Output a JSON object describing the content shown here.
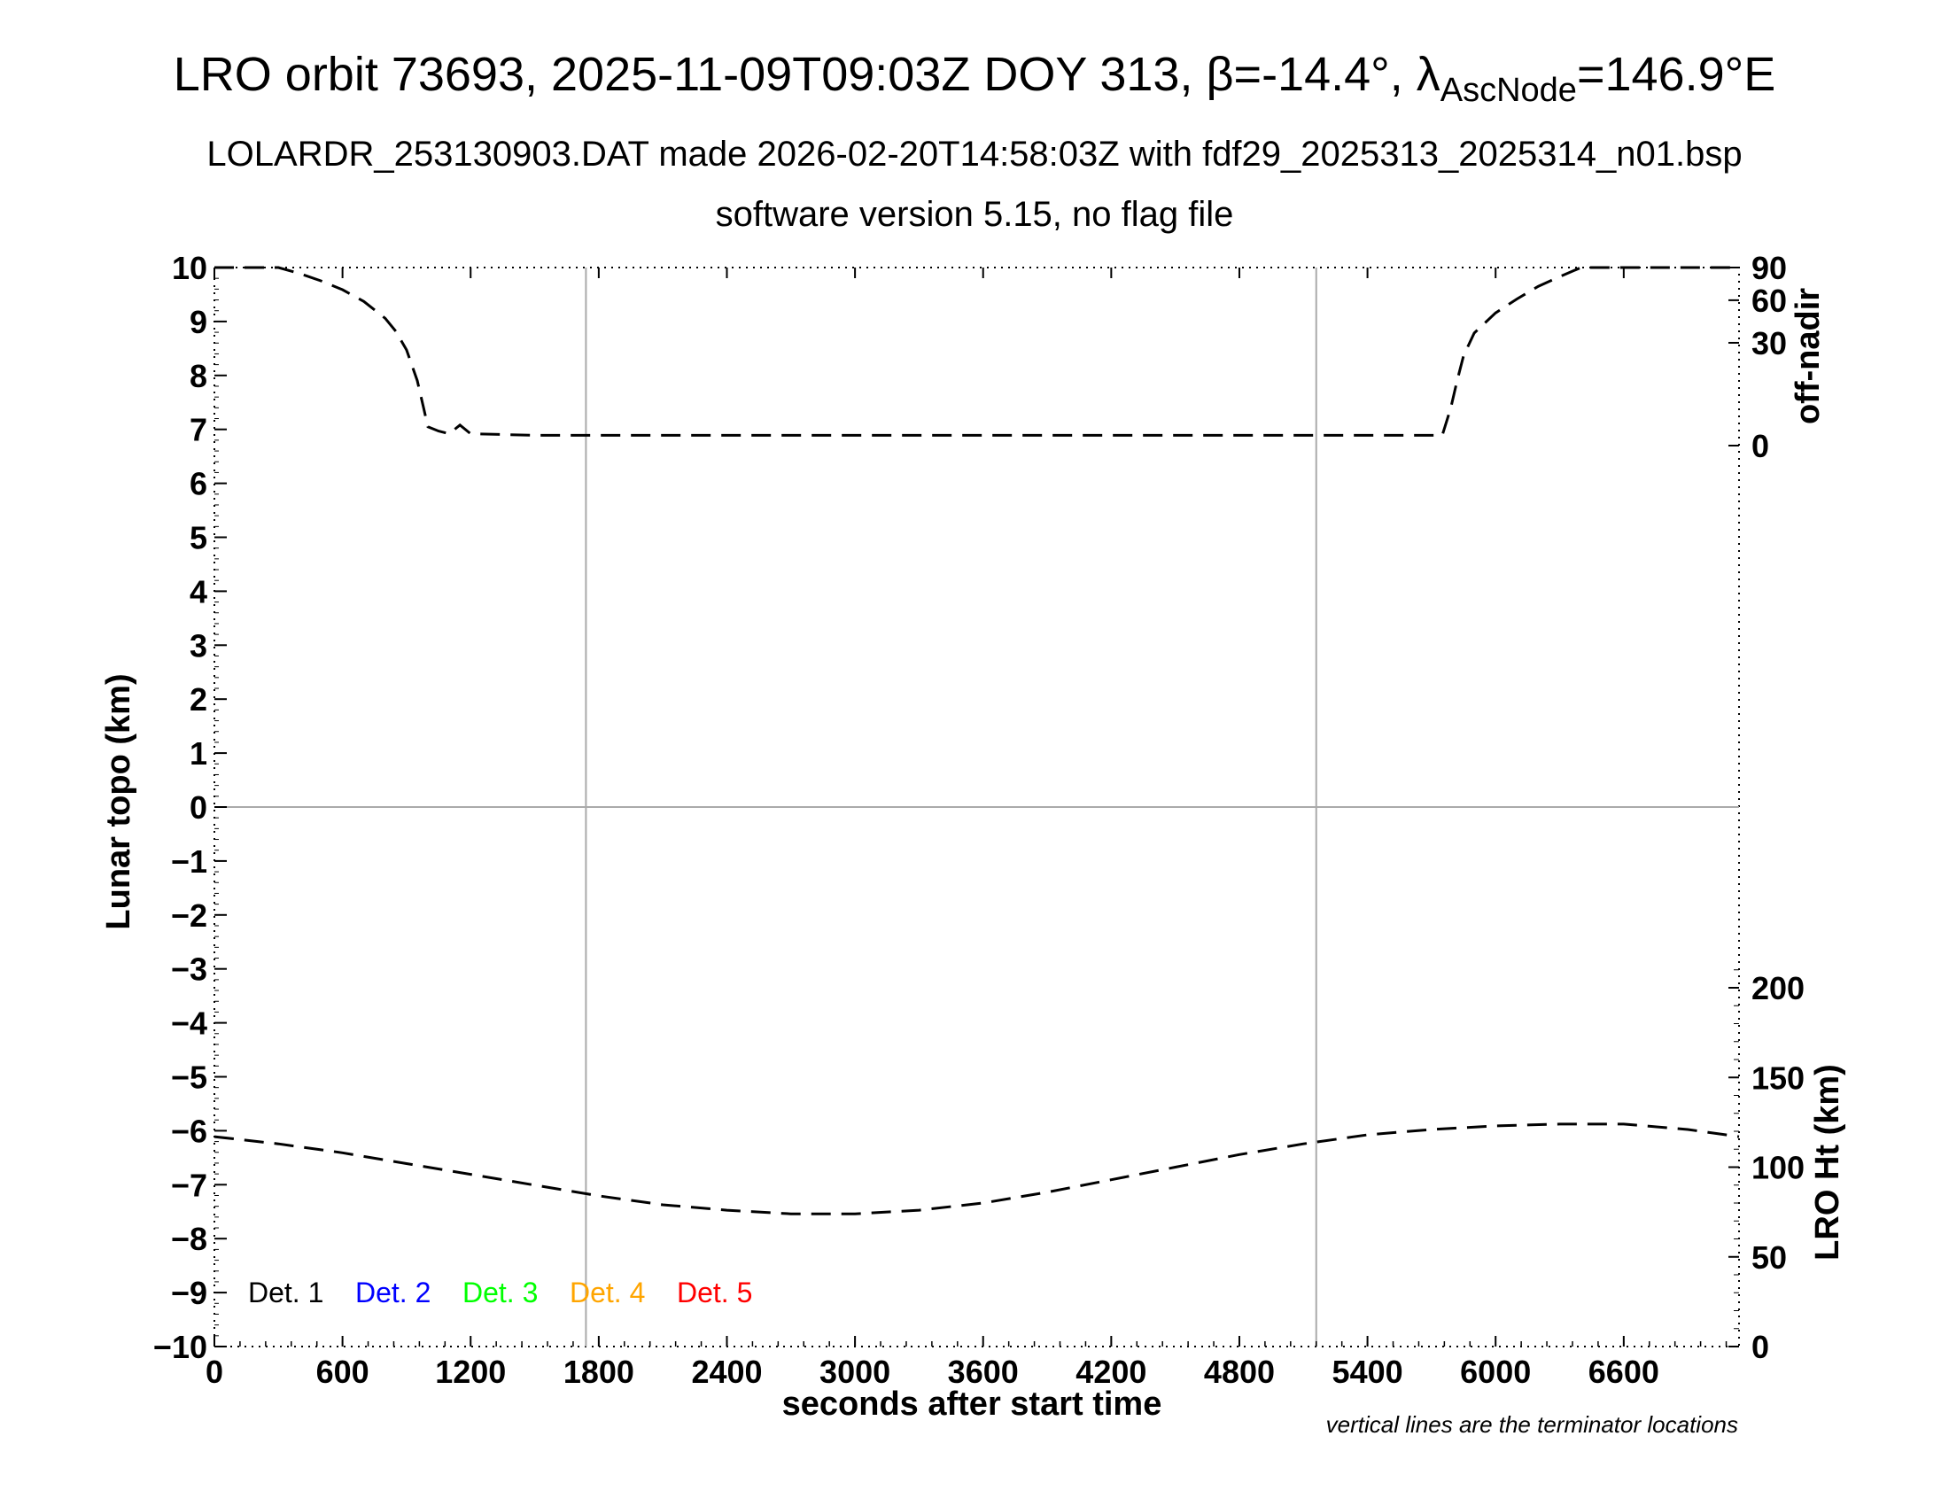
{
  "header": {
    "title_main": "LRO orbit 73693, 2025-11-09T09:03Z DOY 313, β=-14.4°, λ",
    "title_sub": "AscNode",
    "title_tail": "=146.9°E",
    "subtitle_1": "LOLARDR_253130903.DAT made 2026-02-20T14:58:03Z with fdf29_2025313_2025314_n01.bsp",
    "subtitle_2": "software version 5.15, no flag file"
  },
  "chart_data": {
    "type": "line",
    "xlabel": "seconds after start time",
    "ylabel_left": "Lunar topo (km)",
    "ylabel_right_top": "off-nadir",
    "ylabel_right_bottom": "LRO Ht (km)",
    "xlim": [
      0,
      7140
    ],
    "ylim_left": [
      -10,
      10
    ],
    "x_ticks": [
      "0",
      "600",
      "1200",
      "1800",
      "2400",
      "3000",
      "3600",
      "4200",
      "4800",
      "5400",
      "6000",
      "6600"
    ],
    "y_ticks_left": [
      "10",
      "9",
      "8",
      "7",
      "6",
      "5",
      "4",
      "3",
      "2",
      "1",
      "0",
      "−1",
      "−2",
      "−3",
      "−4",
      "−5",
      "−6",
      "−7",
      "−8",
      "−9",
      "−10"
    ],
    "y_ticks_right_top": [
      "90",
      "60",
      "30",
      "0"
    ],
    "y_ticks_right_bottom": [
      "200",
      "150",
      "100",
      "50",
      "0"
    ],
    "terminator_lines_x": [
      1740,
      5160
    ],
    "zero_line": true,
    "note": "vertical lines are the terminator locations",
    "legend": [
      {
        "label": "Det. 1",
        "color": "#000000"
      },
      {
        "label": "Det. 2",
        "color": "#0000ff"
      },
      {
        "label": "Det. 3",
        "color": "#00ff00"
      },
      {
        "label": "Det. 4",
        "color": "#ffa500"
      },
      {
        "label": "Det. 5",
        "color": "#ff0000"
      }
    ],
    "series": [
      {
        "name": "off-nadir",
        "axis": "right_top",
        "style": "dashed",
        "x": [
          0,
          300,
          400,
          500,
          600,
          700,
          800,
          850,
          900,
          950,
          980,
          1000,
          1050,
          1100,
          1150,
          1200,
          1500,
          2000,
          3000,
          4000,
          5000,
          5500,
          5750,
          5790,
          5820,
          5850,
          5900,
          6000,
          6100,
          6200,
          6300,
          6400,
          6600,
          7140
        ],
        "y": [
          90,
          90,
          84,
          77,
          69,
          59,
          46,
          37,
          26,
          12,
          4,
          1,
          0.6,
          0.4,
          1.2,
          0.4,
          0.3,
          0.3,
          0.3,
          0.3,
          0.3,
          0.3,
          0.3,
          4,
          12,
          23,
          36,
          50,
          61,
          72,
          81,
          90,
          90,
          90
        ]
      },
      {
        "name": "LRO Ht (km)",
        "axis": "right_bottom",
        "style": "dashed",
        "x": [
          0,
          300,
          600,
          900,
          1200,
          1500,
          1800,
          2100,
          2400,
          2700,
          2850,
          3000,
          3300,
          3600,
          3900,
          4200,
          4500,
          4800,
          5100,
          5400,
          5700,
          6000,
          6300,
          6450,
          6600,
          6900,
          7140
        ],
        "y": [
          117,
          113,
          108,
          102,
          96,
          90,
          84,
          79,
          76,
          74,
          74,
          74,
          76,
          80,
          86,
          93,
          100,
          107,
          113,
          118,
          121,
          123,
          124,
          124,
          124,
          121,
          117
        ]
      }
    ]
  }
}
